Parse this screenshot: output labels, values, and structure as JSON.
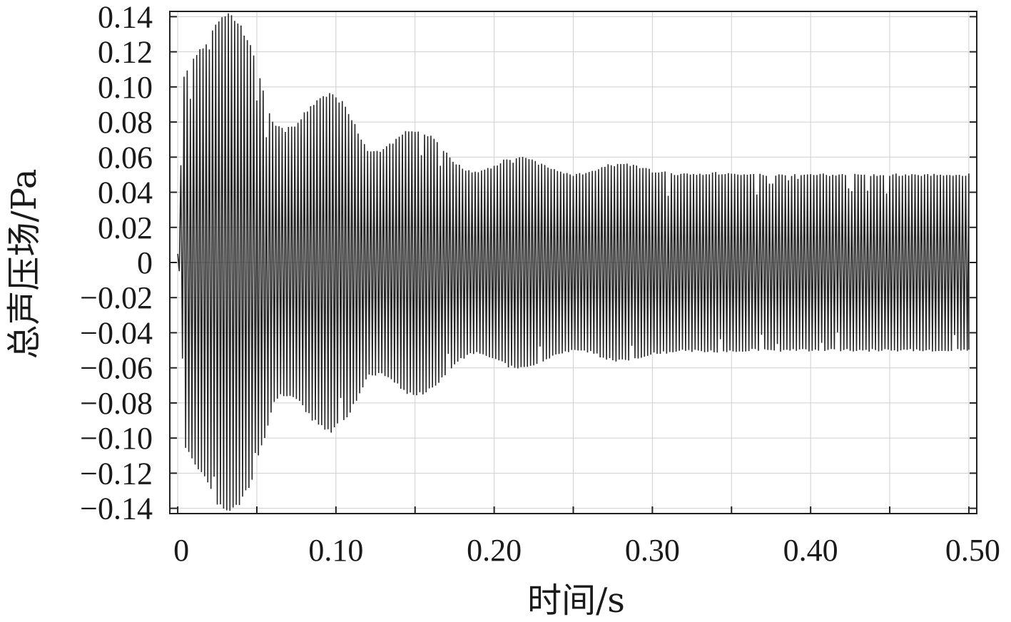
{
  "chart_data": {
    "type": "line",
    "title": "",
    "xlabel": "时间/s",
    "ylabel": "总声压场/Pa",
    "xlim": [
      -0.005,
      0.505
    ],
    "ylim": [
      -0.143,
      0.143
    ],
    "grid": true,
    "legend": "none",
    "x_ticks": [
      {
        "value": 0,
        "label": "0"
      },
      {
        "value": 0.1,
        "label": "0.10"
      },
      {
        "value": 0.2,
        "label": "0.20"
      },
      {
        "value": 0.3,
        "label": "0.30"
      },
      {
        "value": 0.4,
        "label": "0.40"
      },
      {
        "value": 0.5,
        "label": "0.50"
      }
    ],
    "x_minor_ticks": [
      0.05,
      0.15,
      0.25,
      0.35,
      0.45
    ],
    "y_ticks": [
      {
        "value": 0.14,
        "label": "0.14"
      },
      {
        "value": 0.12,
        "label": "0.12"
      },
      {
        "value": 0.1,
        "label": "0.10"
      },
      {
        "value": 0.08,
        "label": "0.08"
      },
      {
        "value": 0.06,
        "label": "0.06"
      },
      {
        "value": 0.04,
        "label": "0.04"
      },
      {
        "value": 0.02,
        "label": "0.02"
      },
      {
        "value": 0,
        "label": "0"
      },
      {
        "value": -0.02,
        "label": "−0.02"
      },
      {
        "value": -0.04,
        "label": "−0.04"
      },
      {
        "value": -0.06,
        "label": "−0.06"
      },
      {
        "value": -0.08,
        "label": "−0.08"
      },
      {
        "value": -0.1,
        "label": "−0.10"
      },
      {
        "value": -0.12,
        "label": "−0.12"
      },
      {
        "value": -0.14,
        "label": "−0.14"
      }
    ],
    "series": [
      {
        "color": "#262626",
        "envelope_time": [
          0.0,
          0.004,
          0.01,
          0.018,
          0.025,
          0.031,
          0.037,
          0.044,
          0.052,
          0.06,
          0.067,
          0.075,
          0.083,
          0.09,
          0.097,
          0.105,
          0.113,
          0.12,
          0.128,
          0.136,
          0.144,
          0.152,
          0.16,
          0.168,
          0.176,
          0.184,
          0.192,
          0.2,
          0.208,
          0.216,
          0.224,
          0.232,
          0.24,
          0.25,
          0.26,
          0.27,
          0.28,
          0.29,
          0.3,
          0.32,
          0.34,
          0.36,
          0.38,
          0.4,
          0.42,
          0.44,
          0.46,
          0.48,
          0.5
        ],
        "envelope_amplitude": [
          0.005,
          0.105,
          0.115,
          0.125,
          0.138,
          0.142,
          0.138,
          0.128,
          0.105,
          0.08,
          0.075,
          0.078,
          0.088,
          0.094,
          0.096,
          0.09,
          0.076,
          0.064,
          0.063,
          0.068,
          0.074,
          0.075,
          0.072,
          0.064,
          0.056,
          0.052,
          0.052,
          0.055,
          0.059,
          0.06,
          0.058,
          0.055,
          0.052,
          0.05,
          0.051,
          0.055,
          0.056,
          0.055,
          0.052,
          0.05,
          0.051,
          0.05,
          0.05,
          0.05,
          0.05,
          0.05,
          0.05,
          0.05,
          0.05
        ],
        "oscillation_frequency_hz": 500
      }
    ]
  }
}
